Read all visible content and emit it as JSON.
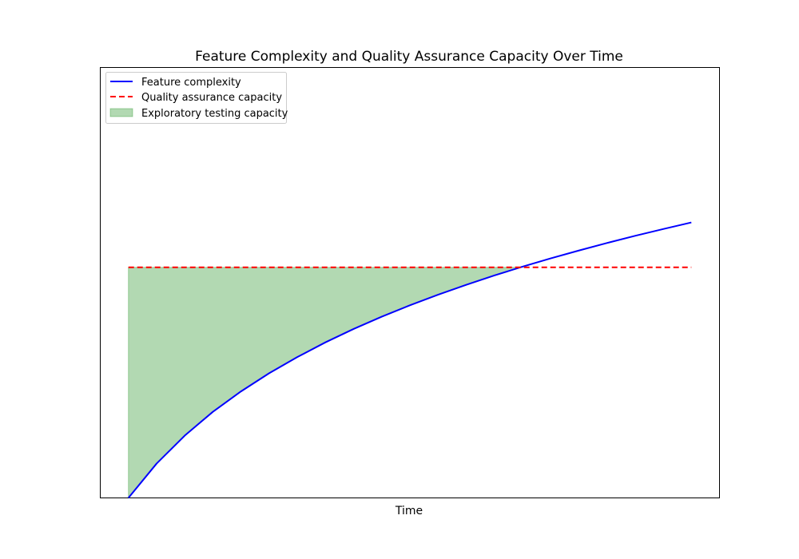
{
  "chart_data": {
    "type": "line",
    "title": "Feature Complexity and Quality Assurance Capacity Over Time",
    "xlabel": "Time",
    "ylabel": "",
    "xlim": [
      -0.25,
      5.25
    ],
    "ylim": [
      0.0,
      2.8
    ],
    "grid": false,
    "legend_position": "upper-left",
    "x_ticks_visible": false,
    "y_ticks_visible": false,
    "x": [
      0,
      0.25,
      0.5,
      0.75,
      1,
      1.25,
      1.5,
      1.75,
      2,
      2.25,
      2.5,
      2.75,
      3,
      3.25,
      3.5,
      3.75,
      4,
      4.25,
      4.5,
      4.75,
      5
    ],
    "series": [
      {
        "name": "Feature complexity",
        "style": "solid",
        "color": "#0000ff",
        "values": [
          0.0,
          0.223,
          0.405,
          0.56,
          0.693,
          0.811,
          0.916,
          1.012,
          1.099,
          1.179,
          1.253,
          1.322,
          1.386,
          1.447,
          1.504,
          1.558,
          1.609,
          1.658,
          1.705,
          1.749,
          1.792
        ]
      },
      {
        "name": "Quality assurance capacity",
        "style": "dashed",
        "color": "#ff0000",
        "values": [
          1.5,
          1.5,
          1.5,
          1.5,
          1.5,
          1.5,
          1.5,
          1.5,
          1.5,
          1.5,
          1.5,
          1.5,
          1.5,
          1.5,
          1.5,
          1.5,
          1.5,
          1.5,
          1.5,
          1.5,
          1.5
        ]
      }
    ],
    "fill_between": {
      "name": "Exploratory testing capacity",
      "color": "#008000",
      "alpha": 0.3,
      "lower_series": "Feature complexity",
      "upper_series": "Quality assurance capacity",
      "where": "upper > lower"
    }
  }
}
